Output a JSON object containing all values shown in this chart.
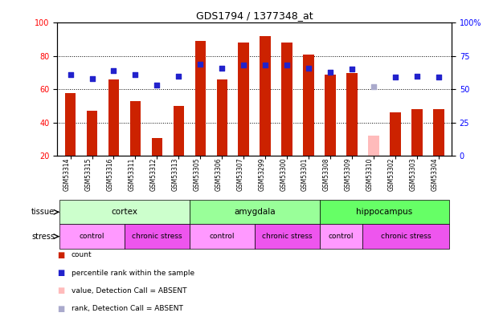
{
  "title": "GDS1794 / 1377348_at",
  "samples": [
    "GSM53314",
    "GSM53315",
    "GSM53316",
    "GSM53311",
    "GSM53312",
    "GSM53313",
    "GSM53305",
    "GSM53306",
    "GSM53307",
    "GSM53299",
    "GSM53300",
    "GSM53301",
    "GSM53308",
    "GSM53309",
    "GSM53310",
    "GSM53302",
    "GSM53303",
    "GSM53304"
  ],
  "red_bars": [
    58,
    47,
    66,
    53,
    31,
    50,
    89,
    66,
    88,
    92,
    88,
    81,
    69,
    70,
    0,
    46,
    48,
    48
  ],
  "pink_bars": [
    0,
    0,
    0,
    0,
    0,
    0,
    0,
    0,
    0,
    0,
    0,
    0,
    0,
    0,
    32,
    0,
    0,
    0
  ],
  "blue_dots": [
    61,
    58,
    64,
    61,
    53,
    60,
    69,
    66,
    68,
    68,
    68,
    66,
    63,
    65,
    0,
    59,
    60,
    59
  ],
  "blue_dot_absent": [
    0,
    0,
    0,
    0,
    0,
    0,
    0,
    0,
    0,
    0,
    0,
    0,
    0,
    0,
    52,
    0,
    0,
    0
  ],
  "absent_sample_idx": 14,
  "tissue_groups": [
    {
      "label": "cortex",
      "start": 0,
      "end": 5,
      "color": "#ccffcc"
    },
    {
      "label": "amygdala",
      "start": 6,
      "end": 11,
      "color": "#99ff99"
    },
    {
      "label": "hippocampus",
      "start": 12,
      "end": 17,
      "color": "#66ff66"
    }
  ],
  "stress_groups": [
    {
      "label": "control",
      "start": 0,
      "end": 2,
      "color": "#ff99ff"
    },
    {
      "label": "chronic stress",
      "start": 3,
      "end": 5,
      "color": "#ee55ee"
    },
    {
      "label": "control",
      "start": 6,
      "end": 8,
      "color": "#ff99ff"
    },
    {
      "label": "chronic stress",
      "start": 9,
      "end": 11,
      "color": "#ee55ee"
    },
    {
      "label": "control",
      "start": 12,
      "end": 13,
      "color": "#ff99ff"
    },
    {
      "label": "chronic stress",
      "start": 14,
      "end": 17,
      "color": "#ee55ee"
    }
  ],
  "ylim_left": [
    20,
    100
  ],
  "ylim_right": [
    0,
    100
  ],
  "yticks_left": [
    20,
    40,
    60,
    80,
    100
  ],
  "yticks_right": [
    0,
    25,
    50,
    75,
    100
  ],
  "ytick_right_labels": [
    "0",
    "25",
    "50",
    "75",
    "100%"
  ],
  "bar_color": "#cc2200",
  "pink_color": "#ffbbbb",
  "blue_color": "#2222cc",
  "blue_absent_color": "#aaaacc",
  "bar_width": 0.5,
  "background_color": "#ffffff",
  "legend_items": [
    {
      "color": "#cc2200",
      "label": "count"
    },
    {
      "color": "#2222cc",
      "label": "percentile rank within the sample"
    },
    {
      "color": "#ffbbbb",
      "label": "value, Detection Call = ABSENT"
    },
    {
      "color": "#aaaacc",
      "label": "rank, Detection Call = ABSENT"
    }
  ]
}
